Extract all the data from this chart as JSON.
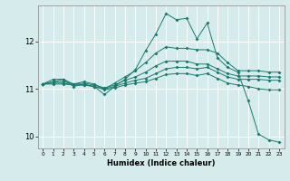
{
  "xlabel": "Humidex (Indice chaleur)",
  "bg_color": "#d6ecec",
  "line_color": "#1a7a6e",
  "grid_color": "#ffffff",
  "xlim": [
    -0.5,
    23.5
  ],
  "ylim": [
    9.75,
    12.75
  ],
  "yticks": [
    10,
    11,
    12
  ],
  "xticks": [
    0,
    1,
    2,
    3,
    4,
    5,
    6,
    7,
    8,
    9,
    10,
    11,
    12,
    13,
    14,
    15,
    16,
    17,
    18,
    19,
    20,
    21,
    22,
    23
  ],
  "series": [
    {
      "x": [
        0,
        1,
        2,
        3,
        4,
        5,
        6,
        7,
        8,
        9,
        10,
        11,
        12,
        13,
        14,
        15,
        16,
        17,
        18,
        19,
        20,
        21,
        22,
        23
      ],
      "y": [
        11.1,
        11.15,
        11.2,
        11.05,
        11.1,
        11.05,
        10.88,
        11.05,
        11.2,
        11.4,
        11.8,
        12.15,
        12.58,
        12.45,
        12.48,
        12.05,
        12.38,
        11.65,
        11.45,
        11.35,
        10.75,
        10.05,
        9.93,
        9.88
      ]
    },
    {
      "x": [
        0,
        1,
        2,
        3,
        4,
        5,
        6,
        7,
        8,
        9,
        10,
        11,
        12,
        13,
        14,
        15,
        16,
        17,
        18,
        19,
        20,
        21,
        22,
        23
      ],
      "y": [
        11.1,
        11.2,
        11.2,
        11.1,
        11.15,
        11.1,
        11.0,
        11.12,
        11.25,
        11.38,
        11.55,
        11.75,
        11.88,
        11.85,
        11.85,
        11.82,
        11.82,
        11.75,
        11.55,
        11.38,
        11.38,
        11.38,
        11.35,
        11.35
      ]
    },
    {
      "x": [
        0,
        1,
        2,
        3,
        4,
        5,
        6,
        7,
        8,
        9,
        10,
        11,
        12,
        13,
        14,
        15,
        16,
        17,
        18,
        19,
        20,
        21,
        22,
        23
      ],
      "y": [
        11.1,
        11.15,
        11.15,
        11.1,
        11.12,
        11.08,
        11.02,
        11.08,
        11.18,
        11.25,
        11.35,
        11.48,
        11.58,
        11.58,
        11.58,
        11.52,
        11.52,
        11.42,
        11.32,
        11.27,
        11.27,
        11.27,
        11.25,
        11.25
      ]
    },
    {
      "x": [
        0,
        1,
        2,
        3,
        4,
        5,
        6,
        7,
        8,
        9,
        10,
        11,
        12,
        13,
        14,
        15,
        16,
        17,
        18,
        19,
        20,
        21,
        22,
        23
      ],
      "y": [
        11.1,
        11.12,
        11.12,
        11.08,
        11.08,
        11.05,
        11.0,
        11.05,
        11.12,
        11.18,
        11.22,
        11.32,
        11.42,
        11.45,
        11.45,
        11.42,
        11.45,
        11.35,
        11.25,
        11.2,
        11.2,
        11.2,
        11.18,
        11.18
      ]
    },
    {
      "x": [
        0,
        1,
        2,
        3,
        4,
        5,
        6,
        7,
        8,
        9,
        10,
        11,
        12,
        13,
        14,
        15,
        16,
        17,
        18,
        19,
        20,
        21,
        22,
        23
      ],
      "y": [
        11.1,
        11.1,
        11.1,
        11.08,
        11.08,
        11.05,
        10.98,
        11.02,
        11.08,
        11.12,
        11.15,
        11.22,
        11.3,
        11.32,
        11.32,
        11.28,
        11.32,
        11.22,
        11.12,
        11.08,
        11.05,
        11.0,
        10.98,
        10.98
      ]
    }
  ]
}
